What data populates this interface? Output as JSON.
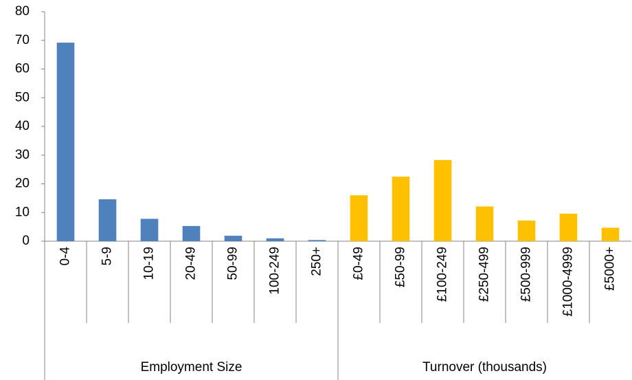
{
  "chart_data": {
    "type": "bar",
    "groups": [
      {
        "name": "Employment Size",
        "color": "#4f81bd",
        "categories": [
          "0-4",
          "5-9",
          "10-19",
          "20-49",
          "50-99",
          "100-249",
          "250+"
        ],
        "values": [
          69.2,
          14.6,
          7.8,
          5.3,
          1.9,
          1.0,
          0.4
        ]
      },
      {
        "name": "Turnover (thousands)",
        "color": "#ffc000",
        "categories": [
          "£0-49",
          "£50-99",
          "£100-249",
          "£250-499",
          "£500-999",
          "£1000-4999",
          "£5000+"
        ],
        "values": [
          16.0,
          22.5,
          28.3,
          12.1,
          7.2,
          9.6,
          4.7
        ]
      }
    ],
    "ylim": [
      0,
      80
    ],
    "yticks": [
      0,
      10,
      20,
      30,
      40,
      50,
      60,
      70,
      80
    ],
    "grid": false
  }
}
